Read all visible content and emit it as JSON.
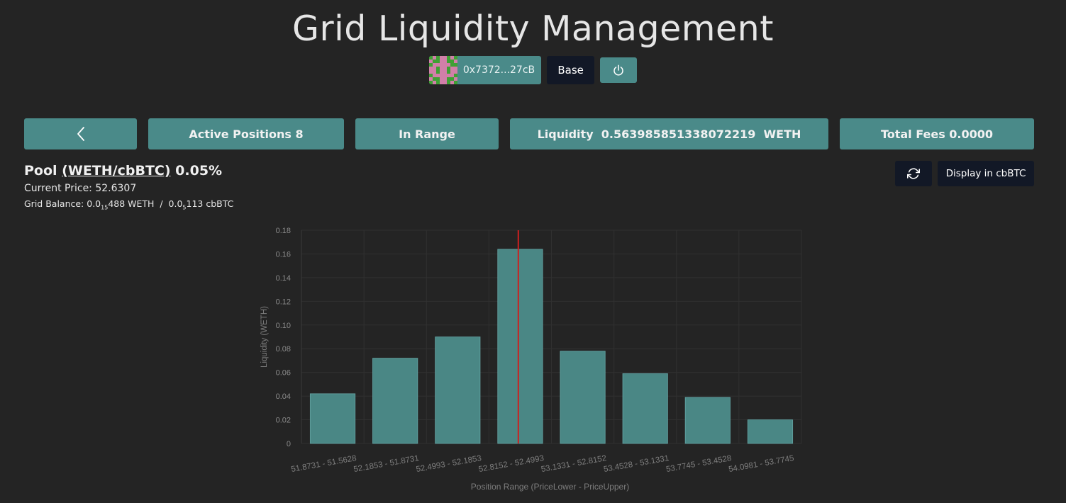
{
  "app": {
    "title": "Grid Liquidity Management"
  },
  "account": {
    "address": "0x7372...27cB",
    "network": "Base",
    "power_icon": "power-icon",
    "avatar_colors": [
      "#3fa034",
      "#d17fa8"
    ]
  },
  "stats": {
    "back_icon": "chevron-left-icon",
    "active_positions": "Active Positions 8",
    "range_status": "In Range",
    "liquidity": "Liquidity  0.563985851338072219  WETH",
    "total_fees": "Total Fees 0.0000"
  },
  "pool": {
    "label": "Pool",
    "pair": "(WETH/cbBTC)",
    "fee": "0.05%",
    "current_price": "Current Price: 52.6307",
    "balance_prefix": "Grid Balance: 0.0",
    "balance_weth_zeros": "15",
    "balance_weth_rest": "488 WETH",
    "balance_sep": "  /  0.0",
    "balance_cbbtc_zeros": "5",
    "balance_cbbtc_rest": "113 cbBTC"
  },
  "controls": {
    "refresh_icon": "refresh-icon",
    "display_toggle": "Display in cbBTC"
  },
  "colors": {
    "background": "#242424",
    "accent": "#4a8a89",
    "dark_button": "#121826",
    "bar_fill": "#4a8785",
    "bar_stroke": "#7fcfd0",
    "price_line": "#cc2020"
  },
  "chart_data": {
    "type": "bar",
    "categories": [
      "51.8731 - 51.5628",
      "52.1853 - 51.8731",
      "52.4993 - 52.1853",
      "52.8152 - 52.4993",
      "53.1331 - 52.8152",
      "53.4528 - 53.1331",
      "53.7745 - 53.4528",
      "54.0981 - 53.7745"
    ],
    "values": [
      0.042,
      0.072,
      0.09,
      0.164,
      0.078,
      0.059,
      0.039,
      0.02
    ],
    "ylim": [
      0,
      0.18
    ],
    "yticks": [
      "0",
      "0.02",
      "0.04",
      "0.06",
      "0.08",
      "0.10",
      "0.12",
      "0.14",
      "0.16",
      "0.18"
    ],
    "ytick_values": [
      0,
      0.02,
      0.04,
      0.06,
      0.08,
      0.1,
      0.12,
      0.14,
      0.16,
      0.18
    ],
    "xlabel": "Position Range (PriceLower - PriceUpper)",
    "ylabel": "Liquidity (WETH)",
    "current_price_category_index": 3,
    "current_price_fraction": 0.47,
    "grid": true,
    "legend": "none"
  }
}
